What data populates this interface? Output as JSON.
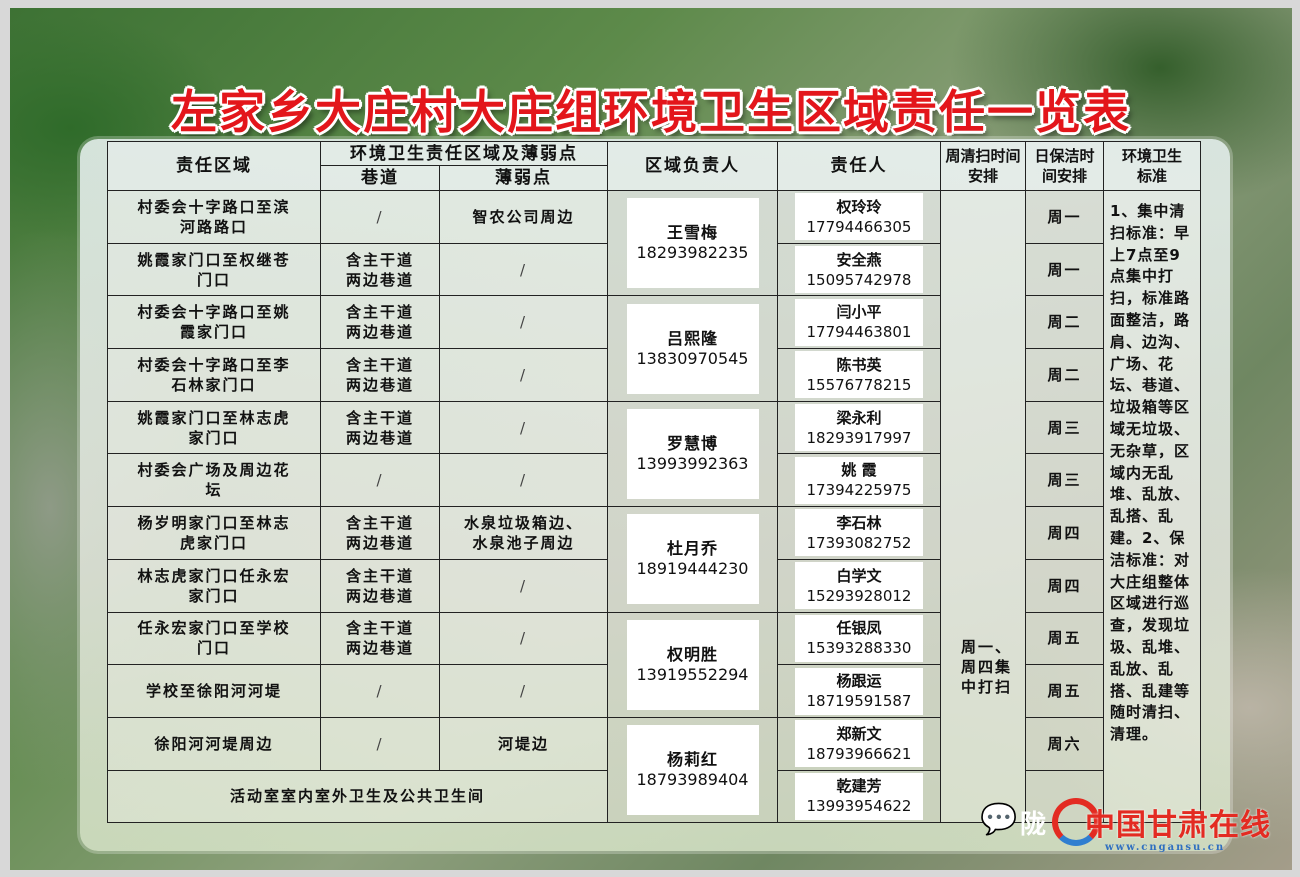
{
  "title": "左家乡大庄村大庄组环境卫生区域责任一览表",
  "headers": {
    "area": "责任区域",
    "group": "环境卫生责任区域及薄弱点",
    "lane": "巷道",
    "weak": "薄弱点",
    "leader": "区域负责人",
    "responsible": "责任人",
    "weekly": "周清扫时间安排",
    "daily": "日保洁时间安排",
    "standard": "环境卫生标准"
  },
  "rows": [
    {
      "area": "村委会十字路口至滨河路路口",
      "lane": "/",
      "weak": "智农公司周边",
      "resp_name": "权玲玲",
      "resp_phone": "17794466305",
      "daily": "周一"
    },
    {
      "area": "姚霞家门口至权继苍门口",
      "lane": "含主干道两边巷道",
      "weak": "/",
      "resp_name": "安全燕",
      "resp_phone": "15095742978",
      "daily": "周一"
    },
    {
      "area": "村委会十字路口至姚霞家门口",
      "lane": "含主干道两边巷道",
      "weak": "/",
      "resp_name": "闫小平",
      "resp_phone": "17794463801",
      "daily": "周二"
    },
    {
      "area": "村委会十字路口至李石林家门口",
      "lane": "含主干道两边巷道",
      "weak": "/",
      "resp_name": "陈书英",
      "resp_phone": "15576778215",
      "daily": "周二"
    },
    {
      "area": "姚霞家门口至林志虎家门口",
      "lane": "含主干道两边巷道",
      "weak": "/",
      "resp_name": "梁永利",
      "resp_phone": "18293917997",
      "daily": "周三"
    },
    {
      "area": "村委会广场及周边花坛",
      "lane": "/",
      "weak": "/",
      "resp_name": "姚 霞",
      "resp_phone": "17394225975",
      "daily": "周三"
    },
    {
      "area": "杨岁明家门口至林志虎家门口",
      "lane": "含主干道两边巷道",
      "weak": "水泉垃圾箱边、水泉池子周边",
      "resp_name": "李石林",
      "resp_phone": "17393082752",
      "daily": "周四"
    },
    {
      "area": "林志虎家门口任永宏家门口",
      "lane": "含主干道两边巷道",
      "weak": "/",
      "resp_name": "白学文",
      "resp_phone": "15293928012",
      "daily": "周四"
    },
    {
      "area": "任永宏家门口至学校门口",
      "lane": "含主干道两边巷道",
      "weak": "/",
      "resp_name": "任银凤",
      "resp_phone": "15393288330",
      "daily": "周五"
    },
    {
      "area": "学校至徐阳河河堤",
      "lane": "/",
      "weak": "/",
      "resp_name": "杨跟运",
      "resp_phone": "18719591587",
      "daily": "周五"
    },
    {
      "area": "徐阳河河堤周边",
      "lane": "/",
      "weak": "河堤边",
      "resp_name": "郑新文",
      "resp_phone": "18793966621",
      "daily": "周六"
    },
    {
      "area": "活动室室内室外卫生及公共卫生间",
      "resp_name": "乾建芳",
      "resp_phone": "13993954622",
      "daily": ""
    }
  ],
  "leaders": [
    {
      "name": "王雪梅",
      "phone": "18293982235"
    },
    {
      "name": "吕熙隆",
      "phone": "13830970545"
    },
    {
      "name": "罗慧博",
      "phone": "13993992363"
    },
    {
      "name": "杜月乔",
      "phone": "18919444230"
    },
    {
      "name": "权明胜",
      "phone": "13919552294"
    },
    {
      "name": "杨莉红",
      "phone": "18793989404"
    }
  ],
  "weekly": "周一、周四集中打扫",
  "standard": "1、集中清扫标准：早上7点至9点集中打扫，标准路面整洁，路肩、边沟、广场、花坛、巷道、垃圾箱等区域无垃圾、无杂草，区域内无乱堆、乱放、乱搭、乱建。2、保洁标准：对大庄组整体区域进行巡查，发现垃圾、乱堆、乱放、乱搭、乱建等随时清扫、清理。",
  "watermark": {
    "account": "陇",
    "brand": "中国甘肃在线",
    "url": "www.cngansu.cn"
  },
  "colors": {
    "title": "#e3161b",
    "brand": "#e32b22"
  }
}
